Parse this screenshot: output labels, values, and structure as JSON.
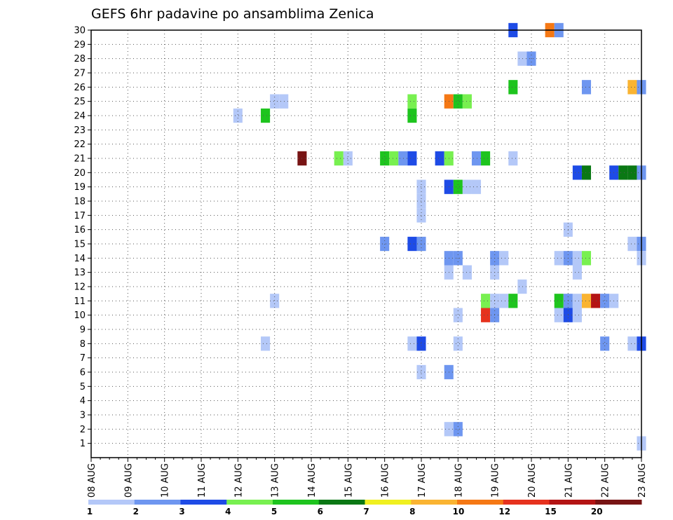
{
  "chart_data": {
    "type": "heatmap",
    "title": "GEFS 6hr padavine po ansamblima Zenica",
    "xlabel": "",
    "ylabel": "",
    "x_tick_labels": [
      "08 AUG",
      "09 AUG",
      "10 AUG",
      "11 AUG",
      "12 AUG",
      "13 AUG",
      "14 AUG",
      "15 AUG",
      "16 AUG",
      "17 AUG",
      "18 AUG",
      "19 AUG",
      "20 AUG",
      "21 AUG",
      "22 AUG",
      "23 AUG"
    ],
    "y_tick_labels": [
      "1",
      "2",
      "3",
      "4",
      "5",
      "6",
      "7",
      "8",
      "9",
      "10",
      "11",
      "12",
      "13",
      "14",
      "15",
      "16",
      "17",
      "18",
      "19",
      "20",
      "21",
      "22",
      "23",
      "24",
      "25",
      "26",
      "27",
      "28",
      "29",
      "30"
    ],
    "x_range_days": [
      0,
      15
    ],
    "y_range": [
      0,
      30
    ],
    "grid": true,
    "colorbar": {
      "labels": [
        "1",
        "2",
        "3",
        "4",
        "5",
        "6",
        "7",
        "8",
        "10",
        "12",
        "15",
        "20"
      ],
      "colors": [
        "#b4c8f8",
        "#6e96f0",
        "#1e4be6",
        "#78f050",
        "#1ec41e",
        "#0a7814",
        "#f0f020",
        "#fab432",
        "#f57814",
        "#e6321e",
        "#b41414",
        "#781414"
      ]
    },
    "cells": [
      {
        "x": 11.5,
        "y": 30,
        "c": 3
      },
      {
        "x": 12.5,
        "y": 30,
        "c": 9
      },
      {
        "x": 12.75,
        "y": 30,
        "c": 2
      },
      {
        "x": 11.75,
        "y": 28,
        "c": 1
      },
      {
        "x": 12.0,
        "y": 28,
        "c": 2
      },
      {
        "x": 11.5,
        "y": 26,
        "c": 5
      },
      {
        "x": 13.5,
        "y": 26,
        "c": 2
      },
      {
        "x": 14.75,
        "y": 26,
        "c": 8
      },
      {
        "x": 15.0,
        "y": 26,
        "c": 2
      },
      {
        "x": 5.0,
        "y": 25,
        "c": 1
      },
      {
        "x": 5.25,
        "y": 25,
        "c": 1
      },
      {
        "x": 8.75,
        "y": 25,
        "c": 4
      },
      {
        "x": 9.75,
        "y": 25,
        "c": 9
      },
      {
        "x": 10.0,
        "y": 25,
        "c": 5
      },
      {
        "x": 10.25,
        "y": 25,
        "c": 4
      },
      {
        "x": 4.0,
        "y": 24,
        "c": 1
      },
      {
        "x": 4.75,
        "y": 24,
        "c": 5
      },
      {
        "x": 8.75,
        "y": 24,
        "c": 5
      },
      {
        "x": 5.75,
        "y": 21,
        "c": 12
      },
      {
        "x": 6.75,
        "y": 21,
        "c": 4
      },
      {
        "x": 7.0,
        "y": 21,
        "c": 1
      },
      {
        "x": 8.0,
        "y": 21,
        "c": 5
      },
      {
        "x": 8.25,
        "y": 21,
        "c": 4
      },
      {
        "x": 8.5,
        "y": 21,
        "c": 2
      },
      {
        "x": 8.75,
        "y": 21,
        "c": 3
      },
      {
        "x": 9.5,
        "y": 21,
        "c": 3
      },
      {
        "x": 9.75,
        "y": 21,
        "c": 4
      },
      {
        "x": 10.5,
        "y": 21,
        "c": 2
      },
      {
        "x": 10.75,
        "y": 21,
        "c": 5
      },
      {
        "x": 11.5,
        "y": 21,
        "c": 1
      },
      {
        "x": 13.25,
        "y": 20,
        "c": 3
      },
      {
        "x": 13.5,
        "y": 20,
        "c": 6
      },
      {
        "x": 14.25,
        "y": 20,
        "c": 3
      },
      {
        "x": 14.5,
        "y": 20,
        "c": 6
      },
      {
        "x": 14.75,
        "y": 20,
        "c": 6
      },
      {
        "x": 15.0,
        "y": 20,
        "c": 2
      },
      {
        "x": 9.0,
        "y": 19,
        "c": 1
      },
      {
        "x": 9.75,
        "y": 19,
        "c": 3
      },
      {
        "x": 10.0,
        "y": 19,
        "c": 5
      },
      {
        "x": 10.25,
        "y": 19,
        "c": 1
      },
      {
        "x": 10.5,
        "y": 19,
        "c": 1
      },
      {
        "x": 9.0,
        "y": 18,
        "c": 1
      },
      {
        "x": 9.0,
        "y": 17,
        "c": 1
      },
      {
        "x": 13.0,
        "y": 16,
        "c": 1
      },
      {
        "x": 8.0,
        "y": 15,
        "c": 2
      },
      {
        "x": 8.75,
        "y": 15,
        "c": 3
      },
      {
        "x": 9.0,
        "y": 15,
        "c": 2
      },
      {
        "x": 14.75,
        "y": 15,
        "c": 1
      },
      {
        "x": 15.0,
        "y": 15,
        "c": 2
      },
      {
        "x": 9.75,
        "y": 14,
        "c": 2
      },
      {
        "x": 10.0,
        "y": 14,
        "c": 2
      },
      {
        "x": 11.0,
        "y": 14,
        "c": 2
      },
      {
        "x": 11.25,
        "y": 14,
        "c": 1
      },
      {
        "x": 12.75,
        "y": 14,
        "c": 1
      },
      {
        "x": 13.0,
        "y": 14,
        "c": 2
      },
      {
        "x": 13.25,
        "y": 14,
        "c": 1
      },
      {
        "x": 13.5,
        "y": 14,
        "c": 4
      },
      {
        "x": 15.0,
        "y": 14,
        "c": 1
      },
      {
        "x": 9.75,
        "y": 13,
        "c": 1
      },
      {
        "x": 10.25,
        "y": 13,
        "c": 1
      },
      {
        "x": 11.0,
        "y": 13,
        "c": 1
      },
      {
        "x": 13.25,
        "y": 13,
        "c": 1
      },
      {
        "x": 11.75,
        "y": 12,
        "c": 1
      },
      {
        "x": 5.0,
        "y": 11,
        "c": 1
      },
      {
        "x": 10.75,
        "y": 11,
        "c": 4
      },
      {
        "x": 11.0,
        "y": 11,
        "c": 1
      },
      {
        "x": 11.25,
        "y": 11,
        "c": 1
      },
      {
        "x": 11.5,
        "y": 11,
        "c": 5
      },
      {
        "x": 12.75,
        "y": 11,
        "c": 5
      },
      {
        "x": 13.0,
        "y": 11,
        "c": 2
      },
      {
        "x": 13.25,
        "y": 11,
        "c": 1
      },
      {
        "x": 13.5,
        "y": 11,
        "c": 8
      },
      {
        "x": 13.75,
        "y": 11,
        "c": 11
      },
      {
        "x": 14.0,
        "y": 11,
        "c": 2
      },
      {
        "x": 14.25,
        "y": 11,
        "c": 1
      },
      {
        "x": 10.0,
        "y": 10,
        "c": 1
      },
      {
        "x": 10.75,
        "y": 10,
        "c": 10
      },
      {
        "x": 11.0,
        "y": 10,
        "c": 2
      },
      {
        "x": 12.75,
        "y": 10,
        "c": 1
      },
      {
        "x": 13.0,
        "y": 10,
        "c": 3
      },
      {
        "x": 13.25,
        "y": 10,
        "c": 1
      },
      {
        "x": 4.75,
        "y": 8,
        "c": 1
      },
      {
        "x": 8.75,
        "y": 8,
        "c": 1
      },
      {
        "x": 9.0,
        "y": 8,
        "c": 3
      },
      {
        "x": 10.0,
        "y": 8,
        "c": 1
      },
      {
        "x": 14.0,
        "y": 8,
        "c": 2
      },
      {
        "x": 14.75,
        "y": 8,
        "c": 1
      },
      {
        "x": 15.0,
        "y": 8,
        "c": 3
      },
      {
        "x": 9.0,
        "y": 6,
        "c": 1
      },
      {
        "x": 9.75,
        "y": 6,
        "c": 2
      },
      {
        "x": 9.75,
        "y": 2,
        "c": 1
      },
      {
        "x": 10.0,
        "y": 2,
        "c": 2
      },
      {
        "x": 15.0,
        "y": 1,
        "c": 1
      }
    ]
  }
}
